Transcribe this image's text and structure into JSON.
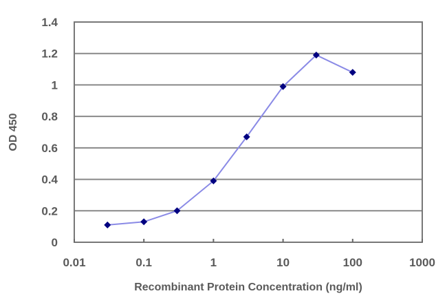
{
  "chart_data": {
    "type": "line",
    "title": "",
    "xlabel": "Recombinant Protein Concentration (ng/ml)",
    "ylabel": "OD 450",
    "x_scale": "log",
    "xlim": [
      0.01,
      1000
    ],
    "ylim": [
      0,
      1.4
    ],
    "x_ticks": [
      "0.01",
      "0.1",
      "1",
      "10",
      "100",
      "1000"
    ],
    "y_ticks": [
      "0",
      "0.2",
      "0.4",
      "0.6",
      "0.8",
      "1",
      "1.2",
      "1.4"
    ],
    "grid": {
      "horizontal": true,
      "vertical": false
    },
    "legend": null,
    "series": [
      {
        "name": "OD 450",
        "x": [
          0.03,
          0.1,
          0.3,
          1,
          3,
          10,
          30,
          100
        ],
        "values": [
          0.11,
          0.13,
          0.2,
          0.39,
          0.67,
          0.99,
          1.19,
          1.08
        ]
      }
    ],
    "colors": {
      "line": "#8080e0",
      "marker": "#000080",
      "grid": "#888888",
      "axis": "#666666"
    }
  }
}
